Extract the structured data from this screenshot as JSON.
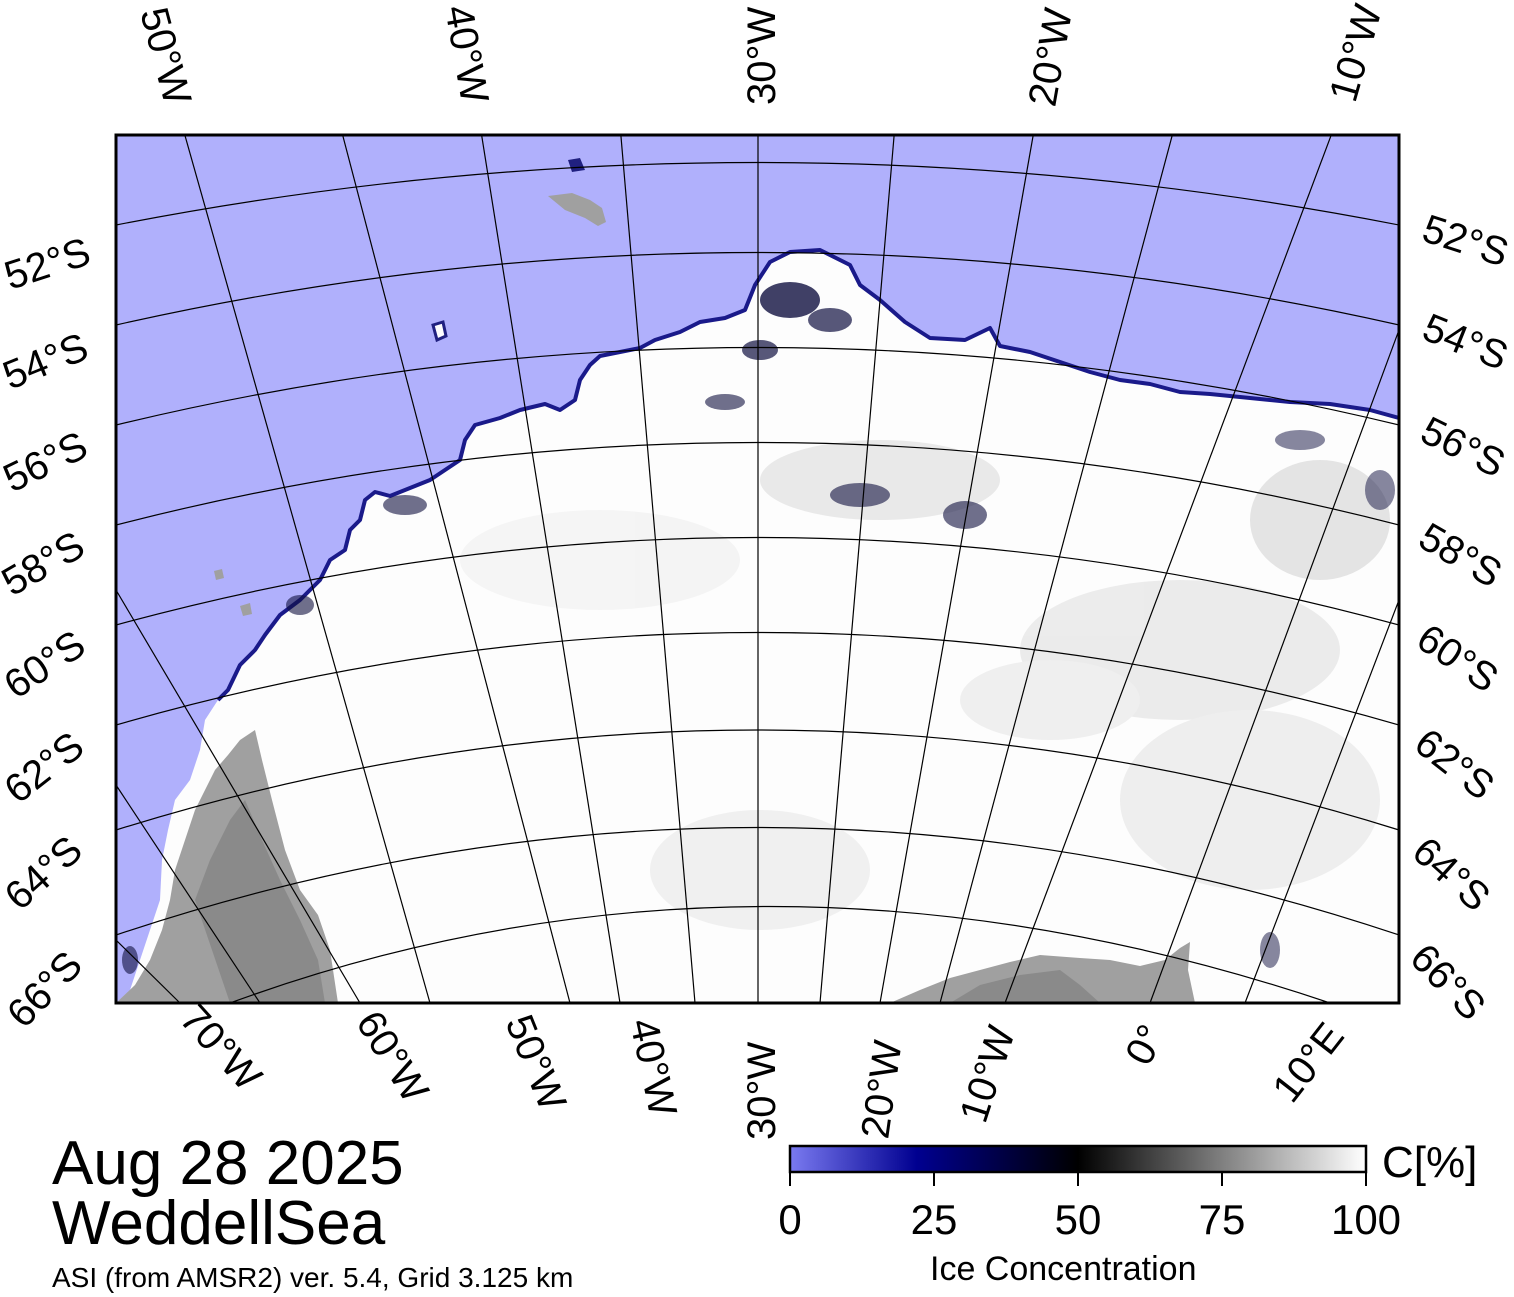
{
  "map": {
    "date": "Aug 28 2025",
    "region": "WeddellSea",
    "source": "ASI (from AMSR2) ver. 5.4,  Grid 3.125 km",
    "colors": {
      "open_water": "#b0b0fc",
      "land": "#a0a0a0",
      "land_dark": "#8a8a8a",
      "ice": "#ffffff",
      "graticule": "#000000"
    },
    "top_longitude_labels": [
      "50°W",
      "40°W",
      "30°W",
      "20°W",
      "10°W"
    ],
    "bottom_longitude_labels": [
      "70°W",
      "60°W",
      "50°W",
      "40°W",
      "30°W",
      "20°W",
      "10°W",
      "0°",
      "10°E"
    ],
    "left_latitude_labels": [
      "52°S",
      "54°S",
      "56°S",
      "58°S",
      "60°S",
      "62°S",
      "64°S",
      "66°S"
    ],
    "right_latitude_labels": [
      "52°S",
      "54°S",
      "56°S",
      "58°S",
      "60°S",
      "62°S",
      "64°S",
      "66°S"
    ]
  },
  "colorbar": {
    "title": "Ice Concentration",
    "unit": "C[%]",
    "ticks": [
      "0",
      "25",
      "50",
      "75",
      "100"
    ],
    "min": 0,
    "max": 100,
    "stops": [
      {
        "value": 0,
        "color": "#7a7af0"
      },
      {
        "value": 22,
        "color": "#000090"
      },
      {
        "value": 50,
        "color": "#000000"
      },
      {
        "value": 100,
        "color": "#ffffff"
      }
    ]
  }
}
